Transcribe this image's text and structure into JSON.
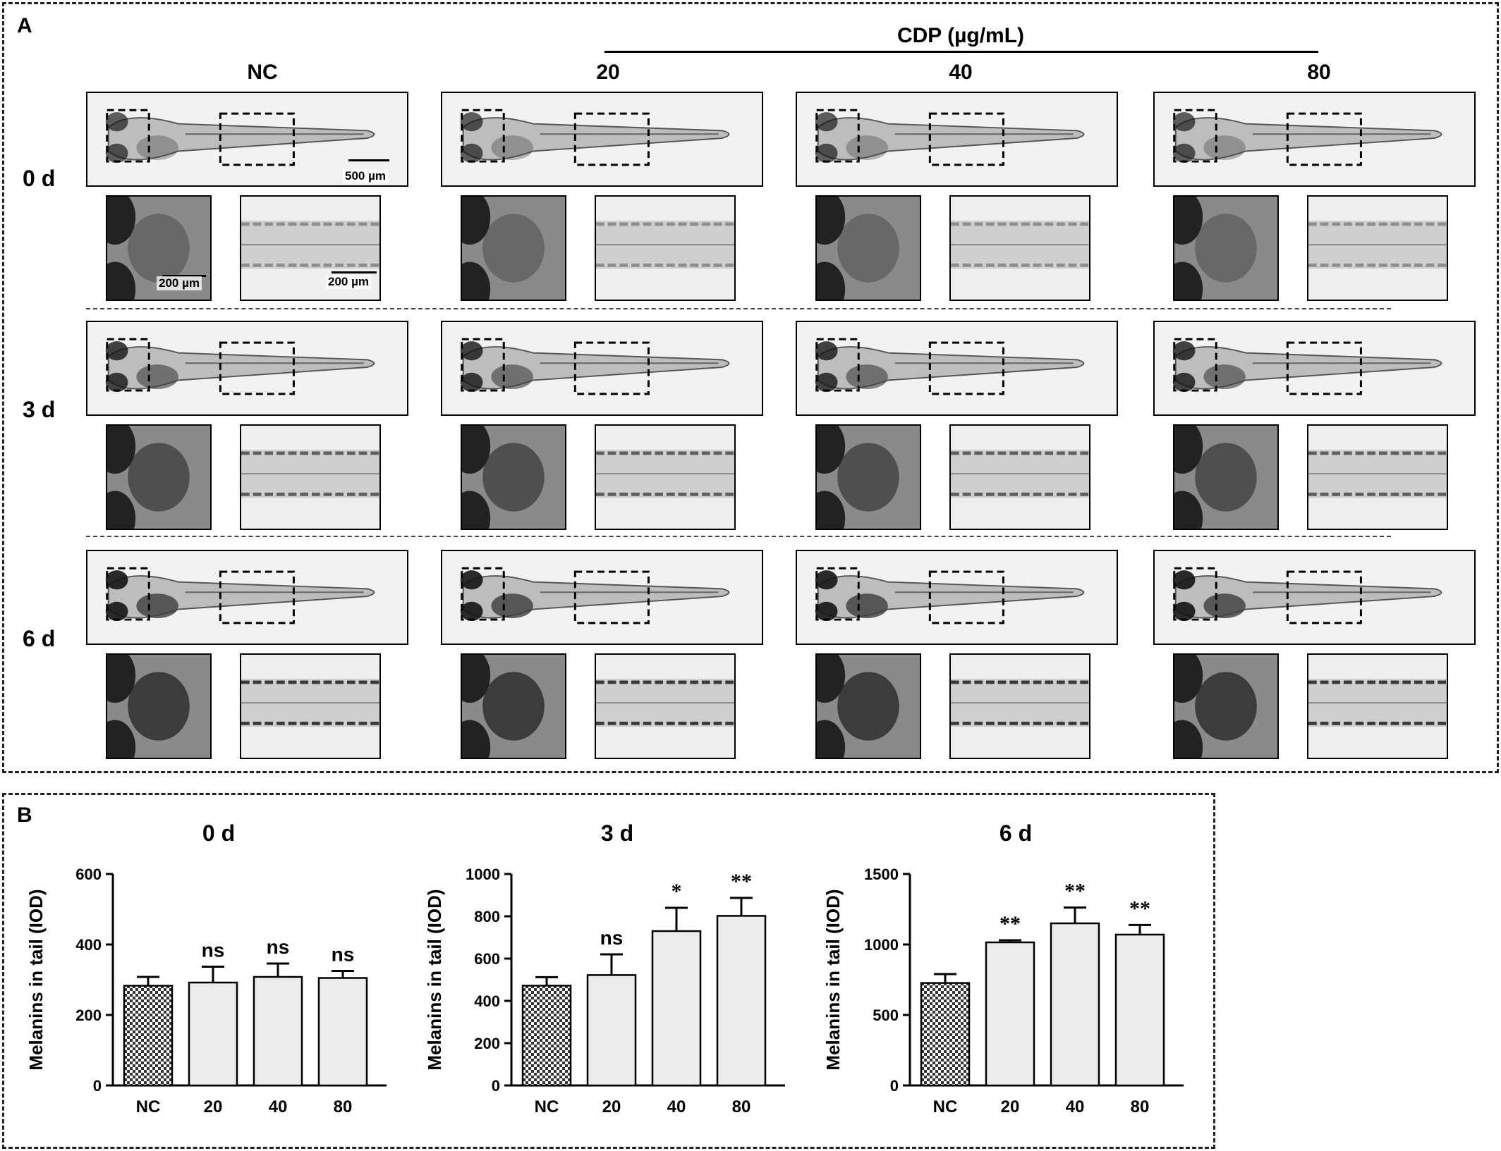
{
  "panel_a": {
    "label": "A",
    "cdp_header": "CDP (µg/mL)",
    "columns": [
      "NC",
      "20",
      "40",
      "80"
    ],
    "rows": [
      "0 d",
      "3 d",
      "6 d"
    ],
    "scale_bars": {
      "whole_larva": "500 µm",
      "head_zoom": "200 µm",
      "tail_zoom": "200 µm"
    }
  },
  "panel_b": {
    "label": "B"
  },
  "colors": {
    "bar_fill": "#ececec",
    "nc_pattern": "checkerboard",
    "axis": "#000000"
  },
  "chart_data": [
    {
      "type": "bar",
      "title": "0 d",
      "ylabel": "Melanins in tail (IOD)",
      "xlabel": "",
      "categories": [
        "NC",
        "20",
        "40",
        "80"
      ],
      "values": [
        283,
        292,
        308,
        305
      ],
      "errors": [
        25,
        45,
        38,
        20
      ],
      "significance": [
        "",
        "ns",
        "ns",
        "ns"
      ],
      "yticks": [
        "0",
        "200",
        "400",
        "600"
      ],
      "ylim": [
        0,
        600
      ],
      "grid": false
    },
    {
      "type": "bar",
      "title": "3 d",
      "ylabel": "Melanins in tail (IOD)",
      "xlabel": "",
      "categories": [
        "NC",
        "20",
        "40",
        "80"
      ],
      "values": [
        472,
        522,
        730,
        802
      ],
      "errors": [
        40,
        98,
        110,
        85
      ],
      "significance": [
        "",
        "ns",
        "*",
        "**"
      ],
      "yticks": [
        "0",
        "200",
        "400",
        "600",
        "800",
        "1000"
      ],
      "ylim": [
        0,
        1000
      ],
      "grid": false
    },
    {
      "type": "bar",
      "title": "6 d",
      "ylabel": "Melanins in tail (IOD)",
      "xlabel": "",
      "categories": [
        "NC",
        "20",
        "40",
        "80"
      ],
      "values": [
        727,
        1015,
        1150,
        1070
      ],
      "errors": [
        63,
        15,
        112,
        68
      ],
      "significance": [
        "",
        "**",
        "**",
        "**"
      ],
      "yticks": [
        "0",
        "500",
        "1000",
        "1500"
      ],
      "ylim": [
        0,
        1500
      ],
      "grid": false
    }
  ]
}
